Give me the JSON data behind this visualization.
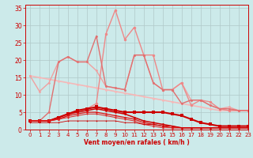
{
  "title": "",
  "xlabel": "Vent moyen/en rafales ( km/h )",
  "xlim": [
    -0.5,
    23
  ],
  "ylim": [
    0,
    36
  ],
  "yticks": [
    0,
    5,
    10,
    15,
    20,
    25,
    30,
    35
  ],
  "xticks": [
    0,
    1,
    2,
    3,
    4,
    5,
    6,
    7,
    8,
    9,
    10,
    11,
    12,
    13,
    14,
    15,
    16,
    17,
    18,
    19,
    20,
    21,
    22,
    23
  ],
  "bg_color": "#cceaea",
  "grid_color": "#b0c8c8",
  "lines": [
    {
      "x": [
        0,
        1,
        2,
        3,
        4,
        5,
        6,
        7,
        8,
        9,
        10,
        11,
        12,
        13,
        14,
        15,
        16,
        17,
        18,
        19,
        20,
        21,
        22,
        23
      ],
      "y": [
        15.5,
        15.0,
        14.5,
        14.0,
        13.5,
        13.0,
        12.5,
        12.0,
        11.5,
        11.0,
        10.5,
        10.0,
        9.5,
        9.0,
        8.5,
        8.0,
        7.5,
        7.0,
        6.5,
        6.0,
        5.5,
        5.5,
        5.5,
        5.5
      ],
      "color": "#f5b8b8",
      "lw": 1.2,
      "marker": "o",
      "ms": 2.0
    },
    {
      "x": [
        0,
        1,
        2,
        3,
        4,
        5,
        6,
        7,
        8,
        9,
        10,
        11,
        12,
        13,
        14,
        15,
        16,
        17,
        18,
        19,
        20,
        21,
        22,
        23
      ],
      "y": [
        15.5,
        11.0,
        13.5,
        19.5,
        21.0,
        19.5,
        19.5,
        17.0,
        12.5,
        12.0,
        11.5,
        21.5,
        21.5,
        13.5,
        11.5,
        11.5,
        13.5,
        8.5,
        8.5,
        7.0,
        6.0,
        6.5,
        5.5,
        5.5
      ],
      "color": "#f0a0a0",
      "lw": 1.0,
      "marker": "o",
      "ms": 2.0
    },
    {
      "x": [
        0,
        1,
        2,
        3,
        4,
        5,
        6,
        7,
        8,
        9,
        10,
        11,
        12,
        13,
        14,
        15,
        16,
        17,
        18,
        19,
        20,
        21,
        22,
        23
      ],
      "y": [
        2.5,
        2.5,
        2.5,
        3.0,
        4.0,
        5.5,
        6.0,
        7.5,
        27.5,
        34.5,
        26.0,
        29.5,
        21.5,
        21.5,
        11.5,
        11.5,
        13.5,
        7.0,
        8.5,
        8.0,
        6.0,
        5.5,
        5.5,
        5.5
      ],
      "color": "#ee8888",
      "lw": 1.0,
      "marker": "o",
      "ms": 2.5
    },
    {
      "x": [
        0,
        1,
        2,
        3,
        4,
        5,
        6,
        7,
        8,
        9,
        10,
        11,
        12,
        13,
        14,
        15,
        16,
        17,
        18,
        19,
        20,
        21,
        22,
        23
      ],
      "y": [
        2.5,
        2.5,
        5.0,
        19.5,
        21.0,
        19.5,
        19.5,
        27.0,
        12.5,
        12.0,
        11.5,
        21.5,
        21.5,
        13.5,
        11.5,
        11.5,
        7.5,
        8.5,
        8.5,
        7.0,
        6.0,
        6.0,
        5.5,
        5.5
      ],
      "color": "#e07070",
      "lw": 1.0,
      "marker": "o",
      "ms": 2.0
    },
    {
      "x": [
        0,
        1,
        2,
        3,
        4,
        5,
        6,
        7,
        8,
        9,
        10,
        11,
        12,
        13,
        14,
        15,
        16,
        17,
        18,
        19,
        20,
        21,
        22,
        23
      ],
      "y": [
        2.5,
        2.5,
        2.5,
        3.5,
        4.5,
        5.5,
        6.0,
        6.5,
        6.0,
        5.5,
        5.0,
        5.0,
        5.0,
        5.0,
        5.0,
        4.5,
        4.0,
        3.0,
        2.0,
        1.5,
        1.0,
        1.0,
        1.0,
        1.0
      ],
      "color": "#cc0000",
      "lw": 1.5,
      "marker": "s",
      "ms": 2.5
    },
    {
      "x": [
        0,
        1,
        2,
        3,
        4,
        5,
        6,
        7,
        8,
        9,
        10,
        11,
        12,
        13,
        14,
        15,
        16,
        17,
        18,
        19,
        20,
        21,
        22,
        23
      ],
      "y": [
        2.5,
        2.5,
        2.5,
        3.5,
        4.5,
        5.0,
        5.5,
        6.0,
        5.5,
        5.0,
        4.5,
        3.5,
        2.5,
        2.0,
        1.5,
        1.0,
        0.5,
        0.5,
        0.5,
        0.5,
        0.5,
        0.5,
        0.5,
        0.5
      ],
      "color": "#cc0000",
      "lw": 1.1,
      "marker": "o",
      "ms": 2.0
    },
    {
      "x": [
        0,
        1,
        2,
        3,
        4,
        5,
        6,
        7,
        8,
        9,
        10,
        11,
        12,
        13,
        14,
        15,
        16,
        17,
        18,
        19,
        20,
        21,
        22,
        23
      ],
      "y": [
        2.5,
        2.5,
        2.5,
        3.0,
        4.0,
        4.5,
        5.0,
        5.0,
        4.5,
        4.0,
        3.5,
        3.0,
        2.0,
        1.5,
        1.0,
        0.5,
        0.5,
        0.5,
        0.5,
        0.5,
        0.5,
        0.5,
        0.5,
        0.5
      ],
      "color": "#dd1111",
      "lw": 0.9,
      "marker": "o",
      "ms": 1.8
    },
    {
      "x": [
        0,
        1,
        2,
        3,
        4,
        5,
        6,
        7,
        8,
        9,
        10,
        11,
        12,
        13,
        14,
        15,
        16,
        17,
        18,
        19,
        20,
        21,
        22,
        23
      ],
      "y": [
        2.5,
        2.5,
        2.5,
        3.0,
        3.5,
        4.0,
        4.5,
        4.5,
        4.0,
        3.5,
        3.0,
        2.5,
        1.5,
        1.0,
        0.5,
        0.5,
        0.5,
        0.5,
        0.5,
        0.5,
        0.5,
        0.5,
        0.5,
        0.5
      ],
      "color": "#dd2222",
      "lw": 0.7,
      "marker": "o",
      "ms": 1.5
    },
    {
      "x": [
        0,
        1,
        2,
        3,
        4,
        5,
        6,
        7,
        8,
        9,
        10,
        11,
        12,
        13,
        14,
        15,
        16,
        17,
        18,
        19,
        20,
        21,
        22,
        23
      ],
      "y": [
        2.0,
        2.0,
        2.0,
        2.0,
        2.5,
        2.5,
        2.5,
        2.5,
        2.5,
        2.5,
        2.0,
        2.0,
        1.5,
        1.5,
        1.0,
        1.0,
        0.5,
        0.5,
        0.5,
        0.5,
        0.5,
        0.5,
        0.5,
        0.5
      ],
      "color": "#cc0000",
      "lw": 0.6,
      "marker": "o",
      "ms": 1.2
    }
  ]
}
